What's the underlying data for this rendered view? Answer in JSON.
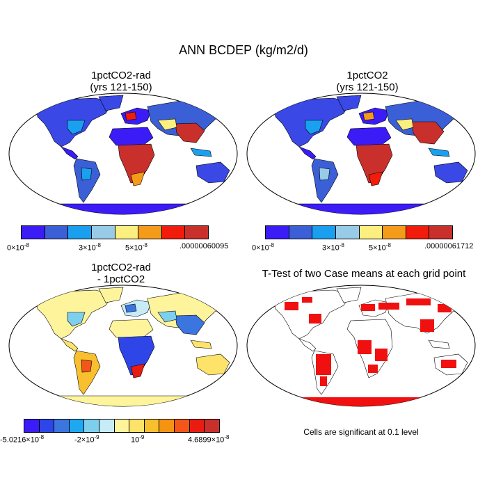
{
  "main_title": "ANN BCDEP (kg/m2/d)",
  "panels": [
    {
      "id": "a",
      "title_line1": "1pctCO2-rad",
      "title_line2": "(yrs 121-150)"
    },
    {
      "id": "b",
      "title_line1": "1pctCO2",
      "title_line2": "(yrs 121-150)"
    },
    {
      "id": "c",
      "title_line1": "1pctCO2-rad",
      "title_line2": "- 1pctCO2"
    },
    {
      "id": "d",
      "title_line1": "T-Test of two Case means at each grid point",
      "title_line2": ""
    }
  ],
  "colorbars": {
    "top": {
      "colors": [
        "#3b1cf7",
        "#3a5fd6",
        "#1a9ef0",
        "#98cbe8",
        "#fbef7f",
        "#f59b1a",
        "#f21c0c",
        "#c9302c"
      ],
      "left_label": {
        "base": "0×10",
        "exp": "-8"
      },
      "mid_labels": [
        {
          "base": "3×10",
          "exp": "-8"
        },
        {
          "base": "5×10",
          "exp": "-8"
        }
      ],
      "right_label_a": ".00000060095",
      "right_label_b": ".00000061712"
    },
    "bottom": {
      "colors": [
        "#3b1cf7",
        "#2e46e8",
        "#3a75e0",
        "#1ea8f2",
        "#7dcfee",
        "#c7ecf7",
        "#fdf49c",
        "#fde36a",
        "#f8bf2e",
        "#f59412",
        "#f4561a",
        "#e91c12",
        "#c9302c"
      ],
      "left_label": {
        "base": "-5.0216×10",
        "exp": "-8"
      },
      "mid_label_1": {
        "base": "-2×10",
        "exp": "-9"
      },
      "mid_label_2": {
        "base": "10",
        "exp": "-9"
      },
      "right_label": {
        "base": "4.6899×10",
        "exp": "-8"
      }
    }
  },
  "significance_note": "Cells are significant at 0.1 level"
}
